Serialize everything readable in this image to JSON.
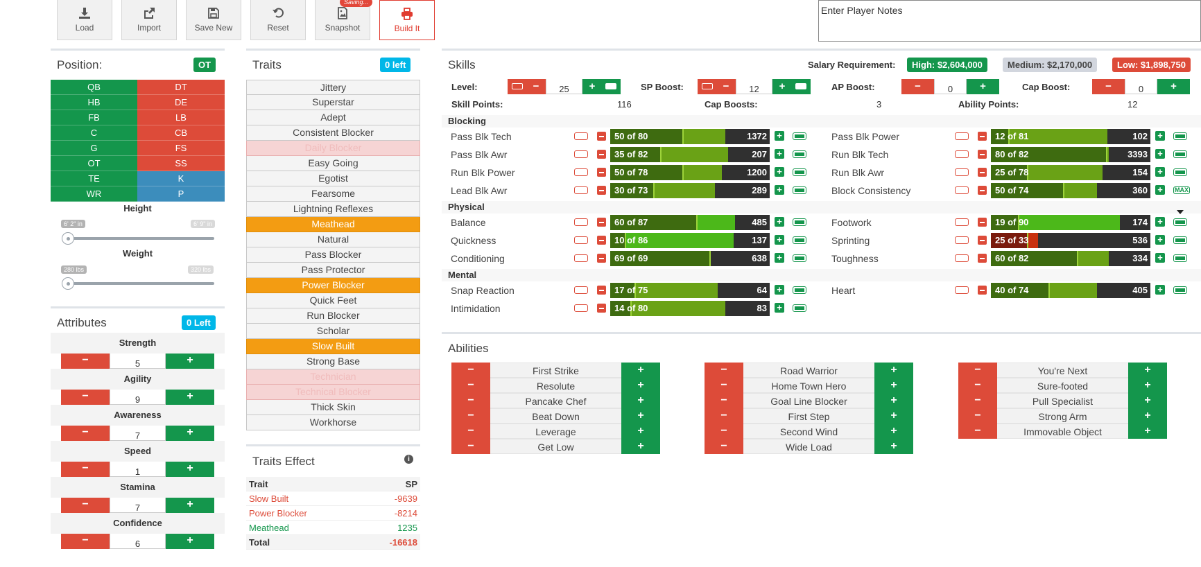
{
  "toolbar": {
    "load": "Load",
    "import": "Import",
    "save_new": "Save New",
    "reset": "Reset",
    "snapshot": "Snapshot",
    "saving_badge": "Saving...",
    "build_it": "Build It"
  },
  "notes": {
    "placeholder": "Enter Player Notes"
  },
  "position": {
    "title": "Position:",
    "selected": "OT",
    "left": [
      "QB",
      "HB",
      "FB",
      "C",
      "G",
      "OT",
      "TE",
      "WR"
    ],
    "right": [
      "DT",
      "DE",
      "LB",
      "CB",
      "FS",
      "SS",
      "K",
      "P"
    ],
    "colors": {
      "offense": "#14964c",
      "defense": "#dd4b39",
      "special": "#3c8dbc"
    }
  },
  "height": {
    "label": "Height",
    "min": "6' 2\" in",
    "max": "6' 9\" in"
  },
  "weight": {
    "label": "Weight",
    "min": "280 lbs",
    "max": "320 lbs"
  },
  "attributes": {
    "title": "Attributes",
    "badge": "0 Left",
    "items": [
      {
        "name": "Strength",
        "value": "5"
      },
      {
        "name": "Agility",
        "value": "9"
      },
      {
        "name": "Awareness",
        "value": "7"
      },
      {
        "name": "Speed",
        "value": "1"
      },
      {
        "name": "Stamina",
        "value": "7"
      },
      {
        "name": "Confidence",
        "value": "6"
      }
    ]
  },
  "traits": {
    "title": "Traits",
    "badge": "0 left",
    "items": [
      {
        "name": "Jittery",
        "state": "normal"
      },
      {
        "name": "Superstar",
        "state": "normal"
      },
      {
        "name": "Adept",
        "state": "normal"
      },
      {
        "name": "Consistent Blocker",
        "state": "normal"
      },
      {
        "name": "Daily Blocker",
        "state": "disabled"
      },
      {
        "name": "Easy Going",
        "state": "normal"
      },
      {
        "name": "Egotist",
        "state": "normal"
      },
      {
        "name": "Fearsome",
        "state": "normal"
      },
      {
        "name": "Lightning Reflexes",
        "state": "normal"
      },
      {
        "name": "Meathead",
        "state": "selected"
      },
      {
        "name": "Natural",
        "state": "normal"
      },
      {
        "name": "Pass Blocker",
        "state": "normal"
      },
      {
        "name": "Pass Protector",
        "state": "normal"
      },
      {
        "name": "Power Blocker",
        "state": "selected"
      },
      {
        "name": "Quick Feet",
        "state": "normal"
      },
      {
        "name": "Run Blocker",
        "state": "normal"
      },
      {
        "name": "Scholar",
        "state": "normal"
      },
      {
        "name": "Slow Built",
        "state": "selected"
      },
      {
        "name": "Strong Base",
        "state": "normal"
      },
      {
        "name": "Technician",
        "state": "disabled"
      },
      {
        "name": "Technical Blocker",
        "state": "disabled"
      },
      {
        "name": "Thick Skin",
        "state": "normal"
      },
      {
        "name": "Workhorse",
        "state": "normal"
      }
    ]
  },
  "traits_effect": {
    "title": "Traits Effect",
    "col_trait": "Trait",
    "col_sp": "SP",
    "rows": [
      {
        "trait": "Slow Built",
        "sp": "-9639",
        "tone": "red"
      },
      {
        "trait": "Power Blocker",
        "sp": "-8214",
        "tone": "red"
      },
      {
        "trait": "Meathead",
        "sp": "1235",
        "tone": "green"
      }
    ],
    "total_label": "Total",
    "total": "-16618"
  },
  "skills": {
    "title": "Skills",
    "salary_label": "Salary Requirement:",
    "salary_high": "High: $2,604,000",
    "salary_medium": "Medium: $2,170,000",
    "salary_low": "Low: $1,898,750",
    "level_label": "Level:",
    "level_value": "25",
    "sp_boost_label": "SP Boost:",
    "sp_boost_value": "12",
    "ap_boost_label": "AP Boost:",
    "ap_boost_value": "0",
    "cap_boost_label": "Cap Boost:",
    "cap_boost_value": "0",
    "skill_points_label": "Skill Points:",
    "skill_points": "116",
    "cap_boosts_label": "Cap Boosts:",
    "cap_boosts": "3",
    "ability_points_label": "Ability Points:",
    "ability_points": "12",
    "categories": {
      "blocking": "Blocking",
      "physical": "Physical",
      "mental": "Mental"
    },
    "blocking": [
      {
        "name": "Pass Blk Tech",
        "cur": 50,
        "cap": 80,
        "label": "50 of 80",
        "cost": "1372",
        "col": 0
      },
      {
        "name": "Pass Blk Power",
        "cur": 12,
        "cap": 81,
        "label": "12 of 81",
        "cost": "102",
        "col": 1
      },
      {
        "name": "Pass Blk Awr",
        "cur": 35,
        "cap": 82,
        "label": "35 of 82",
        "cost": "207",
        "col": 0
      },
      {
        "name": "Run Blk Tech",
        "cur": 80,
        "cap": 82,
        "label": "80 of 82",
        "cost": "3393",
        "col": 1
      },
      {
        "name": "Run Blk Power",
        "cur": 50,
        "cap": 78,
        "label": "50 of 78",
        "cost": "1200",
        "col": 0
      },
      {
        "name": "Run Blk Awr",
        "cur": 25,
        "cap": 78,
        "label": "25 of 78",
        "cost": "154",
        "col": 1
      },
      {
        "name": "Lead Blk Awr",
        "cur": 30,
        "cap": 73,
        "label": "30 of 73",
        "cost": "289",
        "col": 0
      },
      {
        "name": "Block Consistency",
        "cur": 50,
        "cap": 74,
        "label": "50 of 74",
        "cost": "360",
        "col": 1,
        "max": true
      }
    ],
    "physical": [
      {
        "name": "Balance",
        "cur": 60,
        "cap": 87,
        "label": "60 of 87",
        "cost": "485",
        "col": 0,
        "bright": true
      },
      {
        "name": "Footwork",
        "cur": 19,
        "cap": 90,
        "label": "19 of 90",
        "cost": "174",
        "col": 1,
        "bright": true
      },
      {
        "name": "Quickness",
        "cur": 10,
        "cap": 86,
        "label": "10 of 86",
        "cost": "137",
        "col": 0,
        "bright": true
      },
      {
        "name": "Sprinting",
        "cur": 25,
        "cap": 33,
        "label": "25 of 33",
        "cost": "536",
        "col": 1,
        "red": true
      },
      {
        "name": "Conditioning",
        "cur": 69,
        "cap": 69,
        "label": "69 of 69",
        "cost": "638",
        "col": 0
      },
      {
        "name": "Toughness",
        "cur": 60,
        "cap": 82,
        "label": "60 of 82",
        "cost": "334",
        "col": 1
      }
    ],
    "mental": [
      {
        "name": "Snap Reaction",
        "cur": 17,
        "cap": 75,
        "label": "17 of 75",
        "cost": "64",
        "col": 0
      },
      {
        "name": "Heart",
        "cur": 40,
        "cap": 74,
        "label": "40 of 74",
        "cost": "405",
        "col": 1
      },
      {
        "name": "Intimidation",
        "cur": 14,
        "cap": 80,
        "label": "14 of 80",
        "cost": "83",
        "col": 0
      }
    ],
    "max_label": "MAX"
  },
  "abilities": {
    "title": "Abilities",
    "col1": [
      "First Strike",
      "Resolute",
      "Pancake Chef",
      "Beat Down",
      "Leverage",
      "Get Low"
    ],
    "col2": [
      "Road Warrior",
      "Home Town Hero",
      "Goal Line Blocker",
      "First Step",
      "Second Wind",
      "Wide Load"
    ],
    "col3": [
      "You're Next",
      "Sure-footed",
      "Pull Specialist",
      "Strong Arm",
      "Immovable Object"
    ]
  }
}
